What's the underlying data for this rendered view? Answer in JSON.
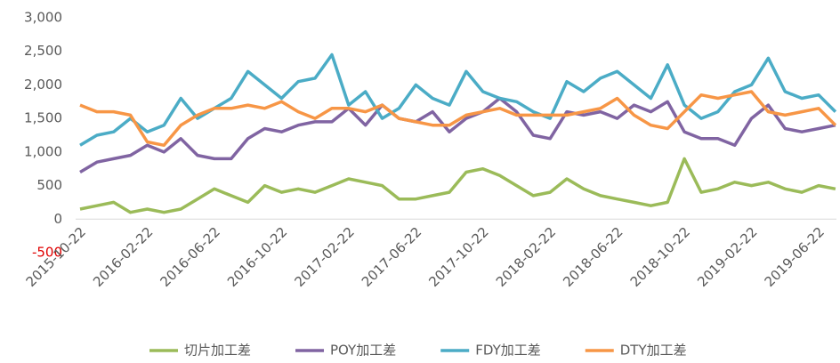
{
  "chart_data": {
    "type": "line",
    "categories": [
      "2015-10-22",
      null,
      null,
      null,
      "2016-02-22",
      null,
      null,
      null,
      "2016-06-22",
      null,
      null,
      null,
      "2016-10-22",
      null,
      null,
      null,
      "2017-02-22",
      null,
      null,
      null,
      "2017-06-22",
      null,
      null,
      null,
      "2017-10-22",
      null,
      null,
      null,
      "2018-02-22",
      null,
      null,
      null,
      "2018-06-22",
      null,
      null,
      null,
      "2018-10-22",
      null,
      null,
      null,
      "2019-02-22",
      null,
      null,
      null,
      "2019-06-22",
      null
    ],
    "series": [
      {
        "name": "切片加工差",
        "color": "#9bbb59",
        "values": [
          150,
          200,
          250,
          100,
          150,
          100,
          150,
          300,
          450,
          350,
          250,
          500,
          400,
          450,
          400,
          500,
          600,
          550,
          500,
          300,
          300,
          350,
          400,
          700,
          750,
          650,
          500,
          350,
          400,
          600,
          450,
          350,
          300,
          250,
          200,
          250,
          900,
          400,
          450,
          550,
          500,
          550,
          450,
          400,
          500,
          450
        ]
      },
      {
        "name": "POY加工差",
        "color": "#8064a2",
        "values": [
          700,
          850,
          900,
          950,
          1100,
          1000,
          1200,
          950,
          900,
          900,
          1200,
          1350,
          1300,
          1400,
          1450,
          1450,
          1650,
          1400,
          1700,
          1500,
          1450,
          1600,
          1300,
          1500,
          1600,
          1800,
          1600,
          1250,
          1200,
          1600,
          1550,
          1600,
          1500,
          1700,
          1600,
          1750,
          1300,
          1200,
          1200,
          1100,
          1500,
          1700,
          1350,
          1300,
          1350,
          1400
        ]
      },
      {
        "name": "FDY加工差",
        "color": "#4bacc6",
        "values": [
          1100,
          1250,
          1300,
          1500,
          1300,
          1400,
          1800,
          1500,
          1650,
          1800,
          2200,
          2000,
          1800,
          2050,
          2100,
          2450,
          1700,
          1900,
          1500,
          1650,
          2000,
          1800,
          1700,
          2200,
          1900,
          1800,
          1750,
          1600,
          1500,
          2050,
          1900,
          2100,
          2200,
          2000,
          1800,
          2300,
          1700,
          1500,
          1600,
          1900,
          2000,
          2400,
          1900,
          1800,
          1850,
          1600
        ]
      },
      {
        "name": "DTY加工差",
        "color": "#f79646",
        "values": [
          1700,
          1600,
          1600,
          1550,
          1150,
          1100,
          1400,
          1550,
          1650,
          1650,
          1700,
          1650,
          1750,
          1600,
          1500,
          1650,
          1650,
          1600,
          1700,
          1500,
          1450,
          1400,
          1400,
          1550,
          1600,
          1650,
          1550,
          1550,
          1550,
          1550,
          1600,
          1650,
          1800,
          1550,
          1400,
          1350,
          1600,
          1850,
          1800,
          1850,
          1900,
          1600,
          1550,
          1600,
          1650,
          1400
        ]
      }
    ],
    "ylim": [
      -500,
      3000
    ],
    "yticks": [
      {
        "value": -500,
        "label": "-500"
      },
      0,
      500,
      {
        "value": 1000,
        "label": "1,000"
      },
      {
        "value": 1500,
        "label": "1,500"
      },
      {
        "value": 2000,
        "label": "2,000"
      },
      {
        "value": 2500,
        "label": "2,500"
      },
      {
        "value": 3000,
        "label": "3,000"
      }
    ],
    "negative_tick_color": "#e00000",
    "grid": false,
    "legend": "bottom"
  }
}
